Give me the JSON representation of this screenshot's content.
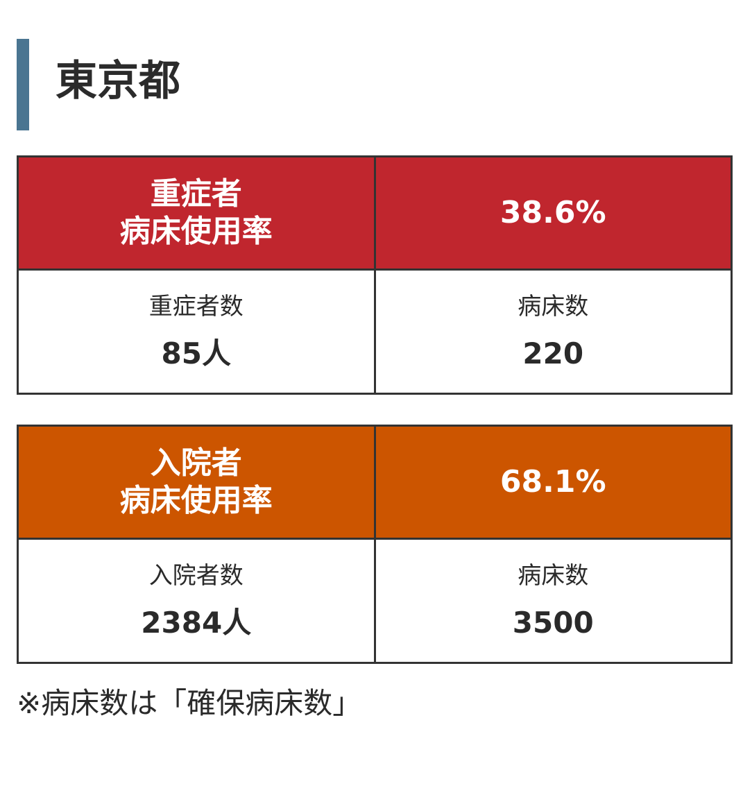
{
  "heading": {
    "title": "東京都"
  },
  "colors": {
    "accent_bar": "#4a7591",
    "severe_header": "#c0262e",
    "hospitalized_header": "#cc5500"
  },
  "severe": {
    "label_line1": "重症者",
    "label_line2": "病床使用率",
    "rate": "38.6%",
    "patients_label": "重症者数",
    "patients_value": "85人",
    "beds_label": "病床数",
    "beds_value": "220"
  },
  "hospitalized": {
    "label_line1": "入院者",
    "label_line2": "病床使用率",
    "rate": "68.1%",
    "patients_label": "入院者数",
    "patients_value": "2384人",
    "beds_label": "病床数",
    "beds_value": "3500"
  },
  "footnote": "※病床数は「確保病床数」"
}
